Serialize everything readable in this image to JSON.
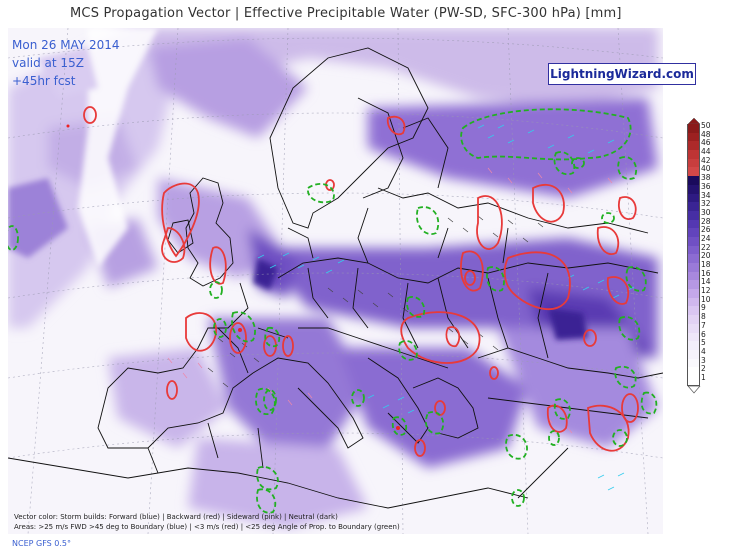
{
  "header": {
    "title": "MCS Propagation Vector | Effective Precipitable Water (PW-SD, SFC-300 hPa) [mm]"
  },
  "valid": {
    "line1": "Mon 26 MAY 2014",
    "line2": "valid at 15Z",
    "line3": "+45hr fcst"
  },
  "brand": {
    "label": "LightningWizard.com"
  },
  "footer": {
    "line1": "Vector color: Storm builds: Forward (blue) | Backward (red) | Sideward (pink) | Neutral (dark)",
    "line2": "Areas: >25 m/s FWD >45 deg to Boundary (blue) | <3 m/s (red) | <25 deg Angle of Prop. to Boundary (green)",
    "model": "NCEP GFS 0.5°"
  },
  "legend": {
    "ticks": [
      "50",
      "48",
      "46",
      "44",
      "42",
      "40",
      "38",
      "36",
      "34",
      "32",
      "30",
      "28",
      "26",
      "24",
      "22",
      "20",
      "18",
      "16",
      "14",
      "12",
      "10",
      "9",
      "8",
      "7",
      "6",
      "5",
      "4",
      "3",
      "2",
      "1"
    ],
    "colors": [
      "#8b1a1a",
      "#9c2020",
      "#ad2a2a",
      "#be3434",
      "#c83e3e",
      "#d24848",
      "#1a0a5c",
      "#241270",
      "#2e1a82",
      "#3a2494",
      "#462ea4",
      "#5438b2",
      "#6244bc",
      "#7050c4",
      "#7e5ecc",
      "#8c6cd2",
      "#9a7ad8",
      "#a888de",
      "#b698e4",
      "#c4a8ea",
      "#d0b8ee",
      "#dac6f2",
      "#e2d2f4",
      "#e8dcf6",
      "#eee6f8",
      "#f2eefa",
      "#f6f3fb",
      "#faf9fd",
      "#ffffff",
      "#ffffff"
    ]
  },
  "colors": {
    "pw_light": "#e6dcf3",
    "pw_mid": "#a890dc",
    "pw_dark": "#5a3ab2",
    "contour_red": "#e83a3a",
    "contour_green": "#22b022",
    "vector_blue": "#33ccee",
    "coast": "#111111"
  }
}
